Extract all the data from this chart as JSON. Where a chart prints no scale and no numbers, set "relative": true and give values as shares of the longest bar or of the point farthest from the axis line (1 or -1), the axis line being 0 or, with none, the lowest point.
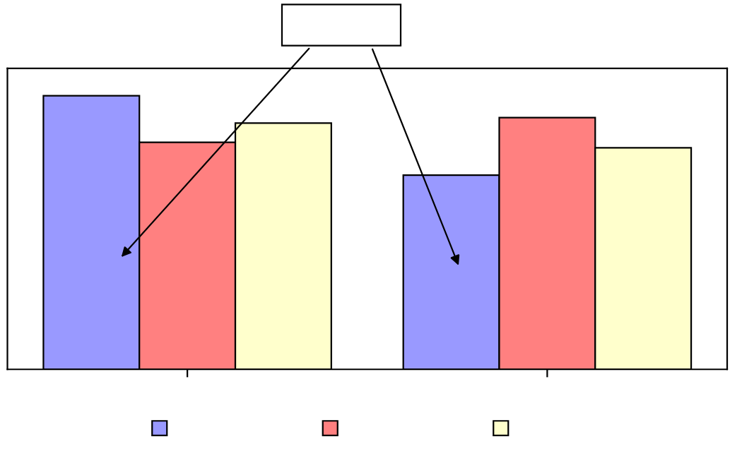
{
  "chart_data": {
    "type": "bar",
    "relative": true,
    "categories": [
      null,
      null
    ],
    "series": [
      {
        "color": "#9999ff",
        "values": [
          1,
          0.71
        ]
      },
      {
        "color": "#ff8080",
        "values": [
          0.83,
          0.92
        ]
      },
      {
        "color": "#ffffcc",
        "values": [
          0.9,
          0.81
        ]
      }
    ],
    "grid": false
  }
}
